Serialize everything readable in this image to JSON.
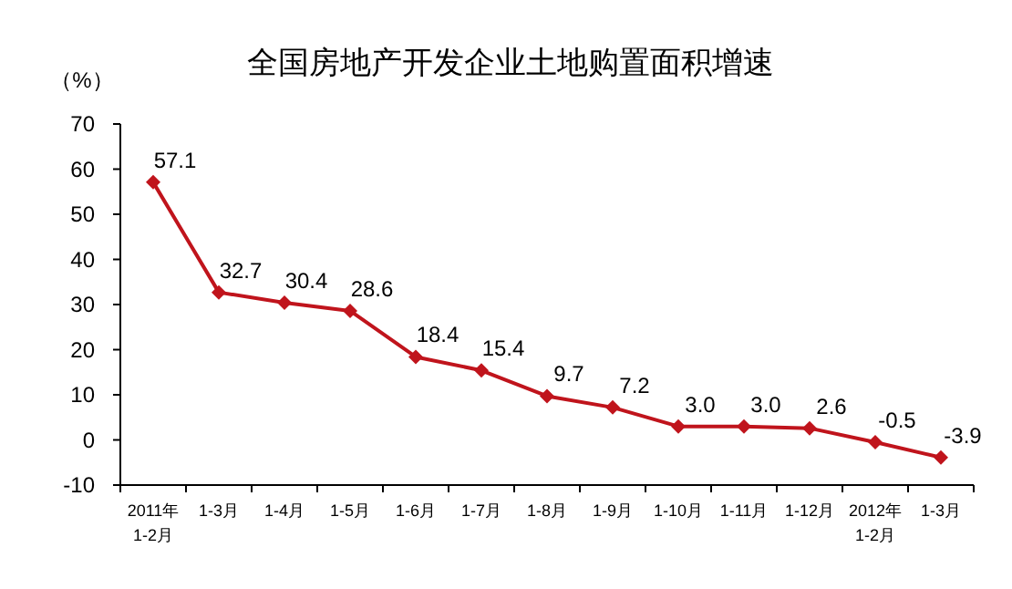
{
  "chart_data": {
    "type": "line",
    "title": "全国房地产开发企业土地购置面积增速",
    "ylabel": "（%）",
    "categories": [
      "2011年\n1-2月",
      "1-3月",
      "1-4月",
      "1-5月",
      "1-6月",
      "1-7月",
      "1-8月",
      "1-9月",
      "1-10月",
      "1-11月",
      "1-12月",
      "2012年\n1-2月",
      "1-3月"
    ],
    "series": [
      {
        "color": "#c0141c",
        "values": [
          57.1,
          32.7,
          30.4,
          28.6,
          18.4,
          15.4,
          9.7,
          7.2,
          3.0,
          3.0,
          2.6,
          -0.5,
          -3.9
        ],
        "value_labels": [
          "57.1",
          "32.7",
          "30.4",
          "28.6",
          "18.4",
          "15.4",
          "9.7",
          "7.2",
          "3.0",
          "3.0",
          "2.6",
          "-0.5",
          "-3.9"
        ]
      }
    ],
    "ylim": [
      -10,
      70
    ],
    "yticks": [
      -10,
      0,
      10,
      20,
      30,
      40,
      50,
      60,
      70
    ],
    "marker": "diamond",
    "grid": false
  }
}
